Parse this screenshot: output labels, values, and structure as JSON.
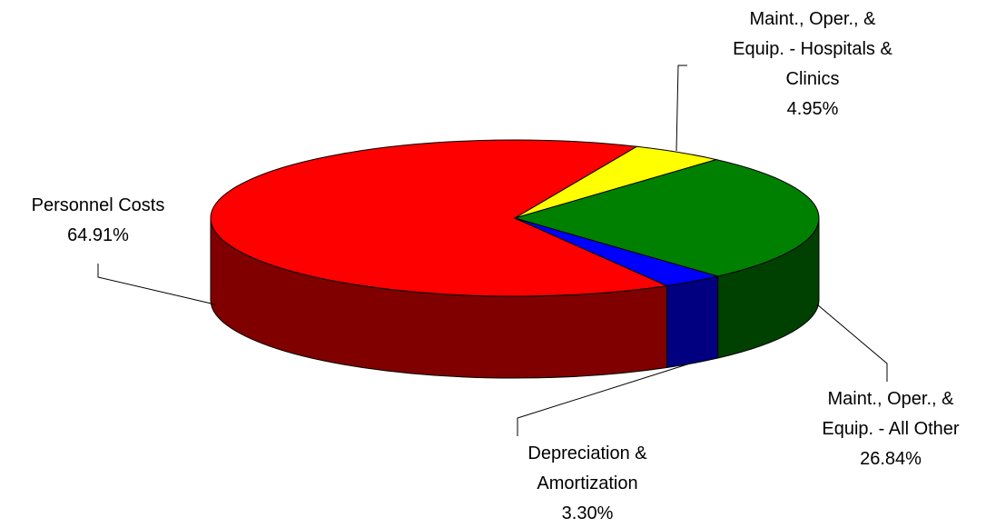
{
  "chart_data": {
    "type": "pie3d",
    "categories": [
      "Personnel Costs",
      "Maint., Oper., & Equip. - Hospitals & Clinics",
      "Maint., Oper., & Equip. - All Other",
      "Depreciation & Amortization"
    ],
    "values": [
      64.91,
      4.95,
      26.84,
      3.3
    ],
    "value_labels": [
      "64.91%",
      "4.95%",
      "26.84%",
      "3.30%"
    ],
    "colors": [
      "#ff0000",
      "#ffff00",
      "#008000",
      "#0000ff"
    ],
    "side_colors": [
      "#800000",
      "#808000",
      "#004000",
      "#000080"
    ]
  }
}
